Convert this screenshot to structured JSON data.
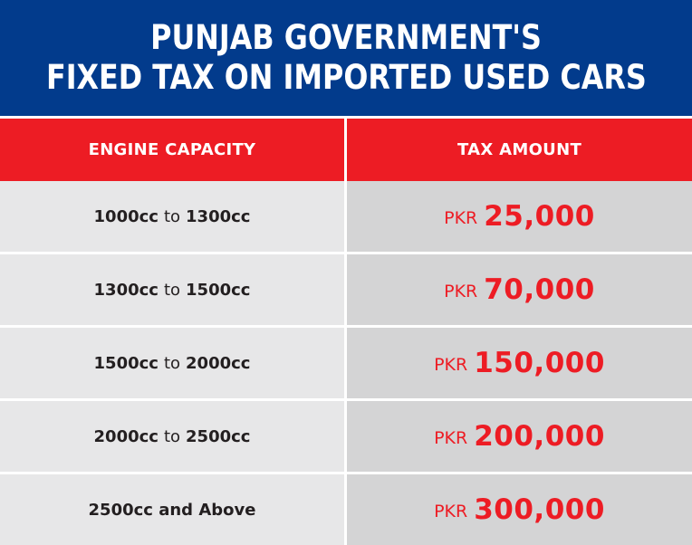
{
  "title": {
    "line1": "PUNJAB GOVERNMENT'S",
    "line2": "FIXED TAX ON IMPORTED USED CARS"
  },
  "table": {
    "headers": {
      "engine_capacity": "ENGINE CAPACITY",
      "tax_amount": "TAX AMOUNT"
    },
    "rows": [
      {
        "from": "1000cc",
        "join": "to",
        "to": "1300cc",
        "currency": "PKR",
        "amount": "25,000"
      },
      {
        "from": "1300cc",
        "join": "to",
        "to": "1500cc",
        "currency": "PKR",
        "amount": "70,000"
      },
      {
        "from": "1500cc",
        "join": "to",
        "to": "2000cc",
        "currency": "PKR",
        "amount": "150,000"
      },
      {
        "from": "2000cc",
        "join": "to",
        "to": "2500cc",
        "currency": "PKR",
        "amount": "200,000"
      },
      {
        "from": "2500cc and Above",
        "join": "",
        "to": "",
        "currency": "PKR",
        "amount": "300,000"
      }
    ]
  },
  "colors": {
    "title_band": "#023b8c",
    "header_band": "#ed1c24",
    "amount_text": "#ed1c24",
    "capacity_cell": "#e7e7e8",
    "tax_cell": "#d4d4d5"
  }
}
